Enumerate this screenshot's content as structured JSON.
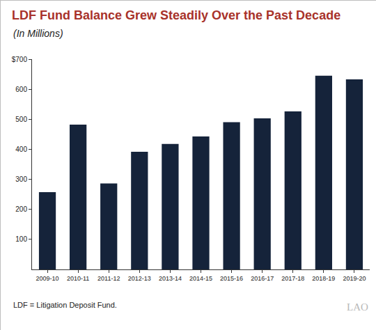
{
  "chart_data": {
    "type": "bar",
    "title": "LDF Fund Balance Grew Steadily Over the Past Decade",
    "subtitle": "(In Millions)",
    "categories": [
      "2009-10",
      "2010-11",
      "2011-12",
      "2012-13",
      "2013-14",
      "2014-15",
      "2015-16",
      "2016-17",
      "2017-18",
      "2018-19",
      "2019-20"
    ],
    "values": [
      257,
      482,
      286,
      392,
      418,
      443,
      490,
      503,
      526,
      645,
      633
    ],
    "color": "#15233a",
    "ylim": [
      0,
      700
    ],
    "yticks": [
      {
        "value": 100,
        "label": "100"
      },
      {
        "value": 200,
        "label": "200"
      },
      {
        "value": 300,
        "label": "300"
      },
      {
        "value": 400,
        "label": "400"
      },
      {
        "value": 500,
        "label": "500"
      },
      {
        "value": 600,
        "label": "600"
      },
      {
        "value": 700,
        "label": "$700"
      }
    ],
    "grid": false,
    "annotations": [
      "LDF = Litigation Deposit Fund.",
      "LAO"
    ]
  }
}
